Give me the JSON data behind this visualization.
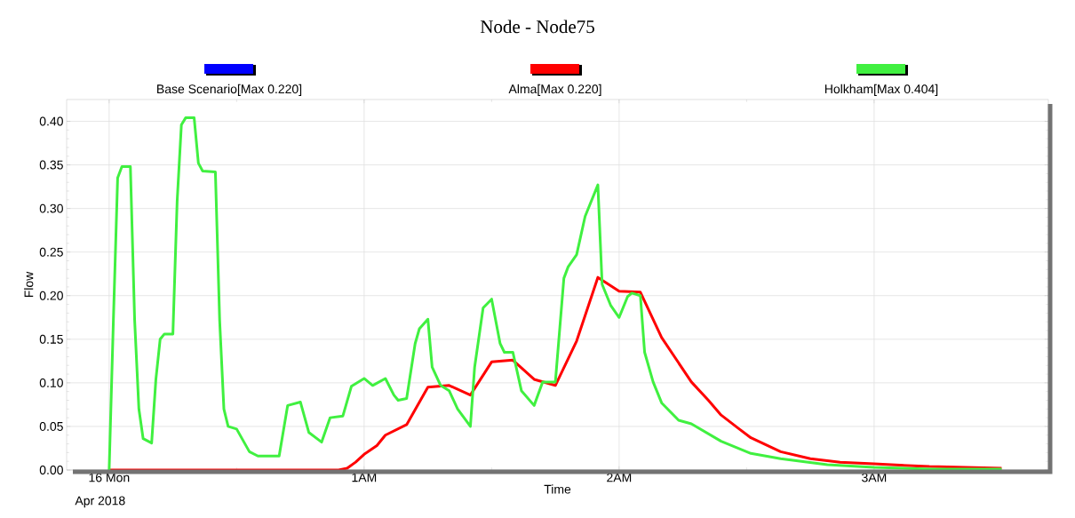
{
  "chart_data": {
    "type": "line",
    "title": "Node - Node75",
    "xlabel": "Time",
    "ylabel": "Flow",
    "annotations": [
      "Apr 2018"
    ],
    "xlim": [
      "2018-04-15T23:50",
      "2018-04-16T03:41"
    ],
    "ylim": [
      0,
      0.425
    ],
    "xticks": [
      {
        "value": "2018-04-16T00:00",
        "label": "16 Mon"
      },
      {
        "value": "2018-04-16T01:00",
        "label": "1AM"
      },
      {
        "value": "2018-04-16T02:00",
        "label": "2AM"
      },
      {
        "value": "2018-04-16T03:00",
        "label": "3AM"
      }
    ],
    "yticks": [
      {
        "value": 0,
        "label": "0.00"
      },
      {
        "value": 0.05,
        "label": "0.05"
      },
      {
        "value": 0.1,
        "label": "0.10"
      },
      {
        "value": 0.15,
        "label": "0.15"
      },
      {
        "value": 0.2,
        "label": "0.20"
      },
      {
        "value": 0.25,
        "label": "0.25"
      },
      {
        "value": 0.3,
        "label": "0.30"
      },
      {
        "value": 0.35,
        "label": "0.35"
      },
      {
        "value": 0.4,
        "label": "0.40"
      }
    ],
    "grid": true,
    "legend": "top",
    "marker": "none",
    "line_style": "solid",
    "series": [
      {
        "name": "Base Scenario[Max 0.220]",
        "color": "#0000ff"
      },
      {
        "name": "Alma[Max 0.220]",
        "color": "#ff0000",
        "x": [
          "2018-04-16T00:00",
          "2018-04-16T00:54",
          "2018-04-16T00:56",
          "2018-04-16T00:58",
          "2018-04-16T01:00",
          "2018-04-16T01:03",
          "2018-04-16T01:05",
          "2018-04-16T01:10",
          "2018-04-16T01:15",
          "2018-04-16T01:20",
          "2018-04-16T01:25",
          "2018-04-16T01:30",
          "2018-04-16T01:35",
          "2018-04-16T01:40",
          "2018-04-16T01:45",
          "2018-04-16T01:50",
          "2018-04-16T01:55",
          "2018-04-16T02:00",
          "2018-04-16T02:05",
          "2018-04-16T02:10",
          "2018-04-16T02:17",
          "2018-04-16T02:21",
          "2018-04-16T02:24",
          "2018-04-16T02:28",
          "2018-04-16T02:31",
          "2018-04-16T02:38",
          "2018-04-16T02:45",
          "2018-04-16T02:52",
          "2018-04-16T03:00",
          "2018-04-16T03:13",
          "2018-04-16T03:30"
        ],
        "values": [
          0,
          0,
          0.002,
          0.009,
          0.018,
          0.028,
          0.04,
          0.052,
          0.095,
          0.097,
          0.086,
          0.124,
          0.126,
          0.104,
          0.097,
          0.148,
          0.221,
          0.205,
          0.204,
          0.152,
          0.101,
          0.08,
          0.063,
          0.048,
          0.037,
          0.021,
          0.013,
          0.009,
          0.007,
          0.004,
          0.002
        ]
      },
      {
        "name": "Holkham[Max 0.404]",
        "color": "#40f040",
        "x": [
          "2018-04-16T00:00",
          "2018-04-16T00:01",
          "2018-04-16T00:02",
          "2018-04-16T00:03",
          "2018-04-16T00:05",
          "2018-04-16T00:06",
          "2018-04-16T00:07",
          "2018-04-16T00:08",
          "2018-04-16T00:10",
          "2018-04-16T00:11",
          "2018-04-16T00:12",
          "2018-04-16T00:13",
          "2018-04-16T00:15",
          "2018-04-16T00:16",
          "2018-04-16T00:17",
          "2018-04-16T00:18",
          "2018-04-16T00:20",
          "2018-04-16T00:21",
          "2018-04-16T00:22",
          "2018-04-16T00:25",
          "2018-04-16T00:26",
          "2018-04-16T00:27",
          "2018-04-16T00:28",
          "2018-04-16T00:30",
          "2018-04-16T00:33",
          "2018-04-16T00:35",
          "2018-04-16T00:40",
          "2018-04-16T00:42",
          "2018-04-16T00:45",
          "2018-04-16T00:47",
          "2018-04-16T00:50",
          "2018-04-16T00:52",
          "2018-04-16T00:55",
          "2018-04-16T00:57",
          "2018-04-16T01:00",
          "2018-04-16T01:02",
          "2018-04-16T01:05",
          "2018-04-16T01:07",
          "2018-04-16T01:08",
          "2018-04-16T01:10",
          "2018-04-16T01:12",
          "2018-04-16T01:13",
          "2018-04-16T01:15",
          "2018-04-16T01:16",
          "2018-04-16T01:18",
          "2018-04-16T01:20",
          "2018-04-16T01:22",
          "2018-04-16T01:25",
          "2018-04-16T01:26",
          "2018-04-16T01:28",
          "2018-04-16T01:30",
          "2018-04-16T01:32",
          "2018-04-16T01:33",
          "2018-04-16T01:35",
          "2018-04-16T01:37",
          "2018-04-16T01:40",
          "2018-04-16T01:42",
          "2018-04-16T01:45",
          "2018-04-16T01:47",
          "2018-04-16T01:48",
          "2018-04-16T01:50",
          "2018-04-16T01:52",
          "2018-04-16T01:55",
          "2018-04-16T01:56",
          "2018-04-16T01:58",
          "2018-04-16T02:00",
          "2018-04-16T02:02",
          "2018-04-16T02:03",
          "2018-04-16T02:05",
          "2018-04-16T02:06",
          "2018-04-16T02:08",
          "2018-04-16T02:10",
          "2018-04-16T02:14",
          "2018-04-16T02:17",
          "2018-04-16T02:24",
          "2018-04-16T02:31",
          "2018-04-16T02:38",
          "2018-04-16T02:49",
          "2018-04-16T03:00",
          "2018-04-16T03:13",
          "2018-04-16T03:30"
        ],
        "values": [
          0,
          0.172,
          0.335,
          0.348,
          0.348,
          0.172,
          0.07,
          0.036,
          0.031,
          0.104,
          0.15,
          0.156,
          0.156,
          0.308,
          0.396,
          0.404,
          0.404,
          0.352,
          0.343,
          0.342,
          0.172,
          0.07,
          0.05,
          0.047,
          0.021,
          0.016,
          0.016,
          0.074,
          0.078,
          0.043,
          0.032,
          0.06,
          0.062,
          0.096,
          0.105,
          0.097,
          0.105,
          0.086,
          0.08,
          0.082,
          0.145,
          0.162,
          0.173,
          0.118,
          0.097,
          0.091,
          0.07,
          0.05,
          0.118,
          0.186,
          0.196,
          0.145,
          0.135,
          0.135,
          0.091,
          0.074,
          0.101,
          0.101,
          0.22,
          0.233,
          0.247,
          0.291,
          0.327,
          0.213,
          0.189,
          0.175,
          0.199,
          0.203,
          0.2,
          0.135,
          0.101,
          0.077,
          0.057,
          0.053,
          0.033,
          0.019,
          0.013,
          0.006,
          0.003,
          0.001,
          0.001
        ]
      }
    ]
  }
}
